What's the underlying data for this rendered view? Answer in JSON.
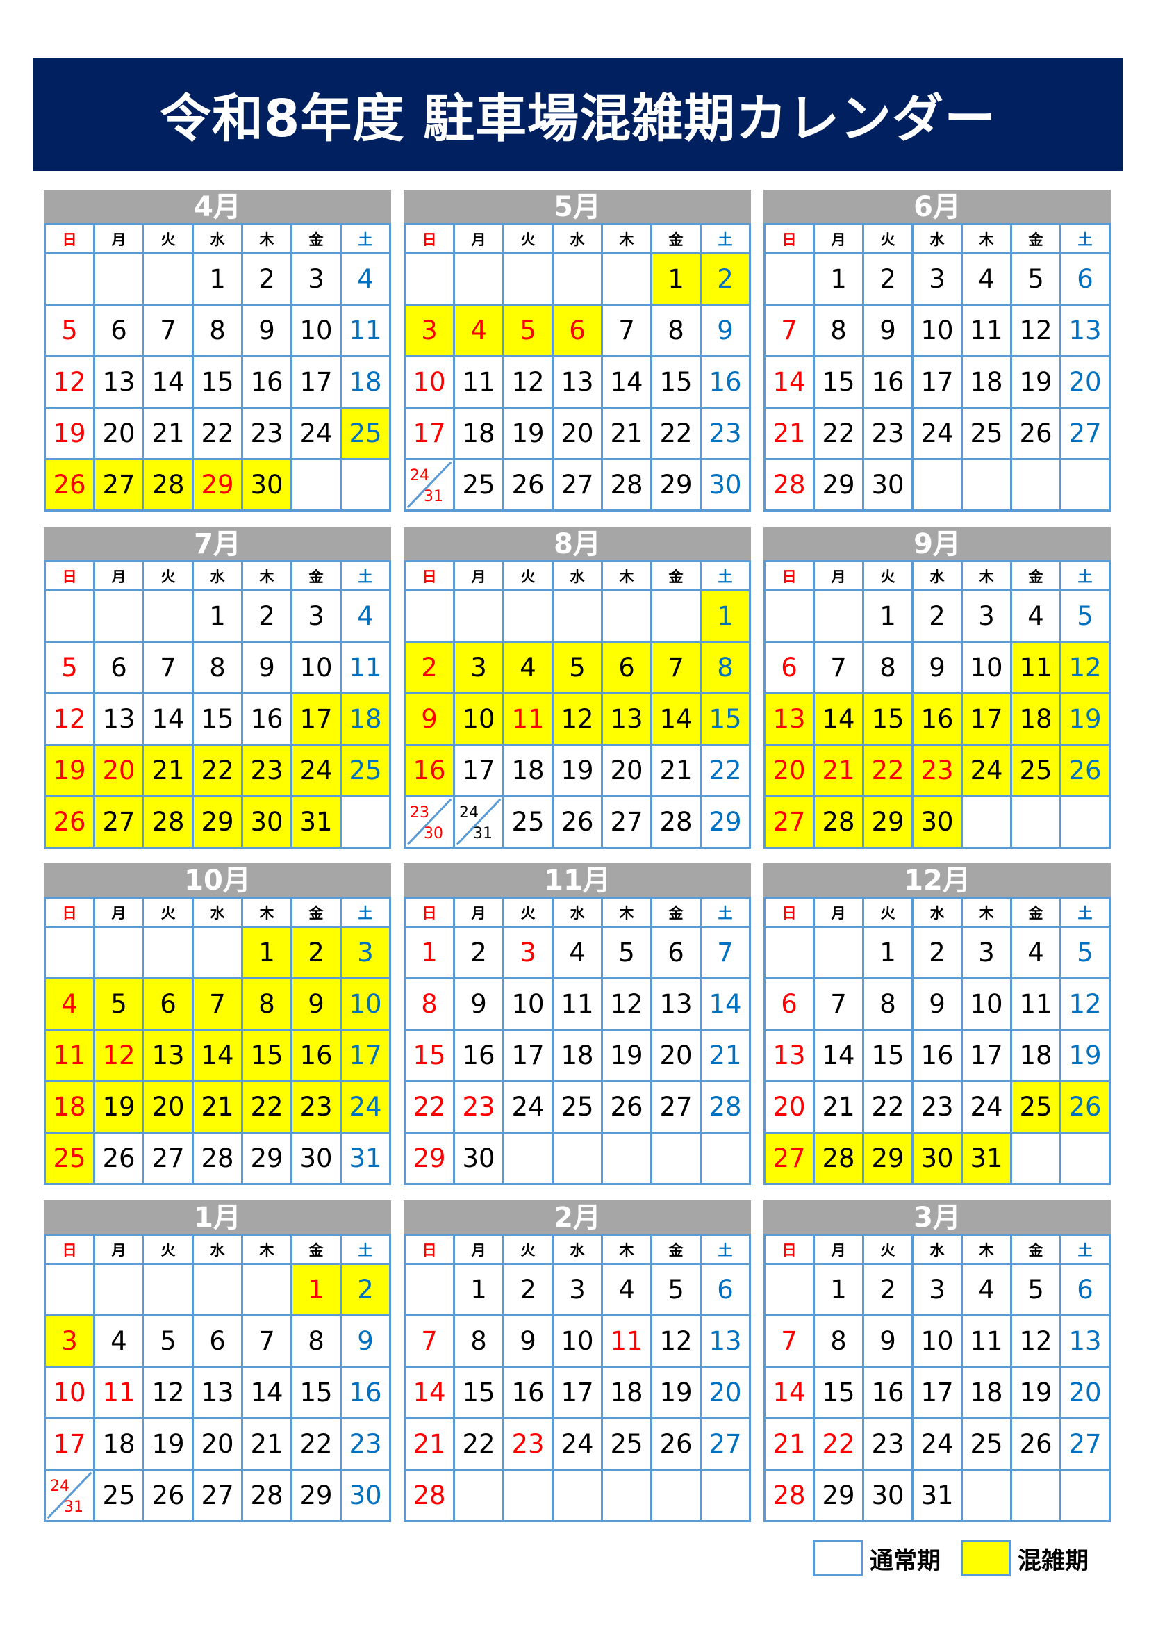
{
  "title": "令和8年度 駐車場混雑期カレンダー",
  "weekdays": [
    "日",
    "月",
    "火",
    "水",
    "木",
    "金",
    "土"
  ],
  "colors": {
    "title_bg": "#002060",
    "header_bg": "#a6a6a6",
    "grid": "#5b9bd5",
    "busy": "#ffff00",
    "sunday_holiday": "#ff0000",
    "saturday": "#0070c0"
  },
  "legend": {
    "normal": "通常期",
    "busy": "混雑期"
  },
  "months": [
    {
      "name": "4月",
      "weeks": [
        [
          "",
          "",
          "",
          "1",
          "2",
          "3",
          "4"
        ],
        [
          "5",
          "6",
          "7",
          "8",
          "9",
          "10",
          "11"
        ],
        [
          "12",
          "13",
          "14",
          "15",
          "16",
          "17",
          "18"
        ],
        [
          "19",
          "20",
          "21",
          "22",
          "23",
          "24",
          "25"
        ],
        [
          "26",
          "27",
          "28",
          "29",
          "30",
          "",
          ""
        ]
      ],
      "holidays": [
        "29"
      ],
      "busy": [
        "25",
        "26",
        "27",
        "28",
        "29",
        "30"
      ]
    },
    {
      "name": "5月",
      "weeks": [
        [
          "",
          "",
          "",
          "",
          "",
          "1",
          "2"
        ],
        [
          "3",
          "4",
          "5",
          "6",
          "7",
          "8",
          "9"
        ],
        [
          "10",
          "11",
          "12",
          "13",
          "14",
          "15",
          "16"
        ],
        [
          "17",
          "18",
          "19",
          "20",
          "21",
          "22",
          "23"
        ],
        [
          "24/31",
          "25",
          "26",
          "27",
          "28",
          "29",
          "30"
        ]
      ],
      "holidays": [
        "3",
        "4",
        "5",
        "6"
      ],
      "busy": [
        "1",
        "2",
        "3",
        "4",
        "5",
        "6"
      ]
    },
    {
      "name": "6月",
      "weeks": [
        [
          "",
          "1",
          "2",
          "3",
          "4",
          "5",
          "6"
        ],
        [
          "7",
          "8",
          "9",
          "10",
          "11",
          "12",
          "13"
        ],
        [
          "14",
          "15",
          "16",
          "17",
          "18",
          "19",
          "20"
        ],
        [
          "21",
          "22",
          "23",
          "24",
          "25",
          "26",
          "27"
        ],
        [
          "28",
          "29",
          "30",
          "",
          "",
          "",
          ""
        ]
      ],
      "holidays": [],
      "busy": []
    },
    {
      "name": "7月",
      "weeks": [
        [
          "",
          "",
          "",
          "1",
          "2",
          "3",
          "4"
        ],
        [
          "5",
          "6",
          "7",
          "8",
          "9",
          "10",
          "11"
        ],
        [
          "12",
          "13",
          "14",
          "15",
          "16",
          "17",
          "18"
        ],
        [
          "19",
          "20",
          "21",
          "22",
          "23",
          "24",
          "25"
        ],
        [
          "26",
          "27",
          "28",
          "29",
          "30",
          "31",
          ""
        ]
      ],
      "holidays": [
        "20"
      ],
      "busy": [
        "17",
        "18",
        "19",
        "20",
        "21",
        "22",
        "23",
        "24",
        "25",
        "26",
        "27",
        "28",
        "29",
        "30",
        "31"
      ]
    },
    {
      "name": "8月",
      "weeks": [
        [
          "",
          "",
          "",
          "",
          "",
          "",
          "1"
        ],
        [
          "2",
          "3",
          "4",
          "5",
          "6",
          "7",
          "8"
        ],
        [
          "9",
          "10",
          "11",
          "12",
          "13",
          "14",
          "15"
        ],
        [
          "16",
          "17",
          "18",
          "19",
          "20",
          "21",
          "22"
        ],
        [
          "23/30",
          "24/31",
          "25",
          "26",
          "27",
          "28",
          "29"
        ]
      ],
      "holidays": [
        "11"
      ],
      "busy": [
        "1",
        "2",
        "3",
        "4",
        "5",
        "6",
        "7",
        "8",
        "9",
        "10",
        "11",
        "12",
        "13",
        "14",
        "15",
        "16"
      ]
    },
    {
      "name": "9月",
      "weeks": [
        [
          "",
          "",
          "1",
          "2",
          "3",
          "4",
          "5"
        ],
        [
          "6",
          "7",
          "8",
          "9",
          "10",
          "11",
          "12"
        ],
        [
          "13",
          "14",
          "15",
          "16",
          "17",
          "18",
          "19"
        ],
        [
          "20",
          "21",
          "22",
          "23",
          "24",
          "25",
          "26"
        ],
        [
          "27",
          "28",
          "29",
          "30",
          "",
          "",
          ""
        ]
      ],
      "holidays": [
        "21",
        "22",
        "23"
      ],
      "busy": [
        "11",
        "12",
        "13",
        "14",
        "15",
        "16",
        "17",
        "18",
        "19",
        "20",
        "21",
        "22",
        "23",
        "24",
        "25",
        "26",
        "27",
        "28",
        "29",
        "30"
      ]
    },
    {
      "name": "10月",
      "weeks": [
        [
          "",
          "",
          "",
          "",
          "1",
          "2",
          "3"
        ],
        [
          "4",
          "5",
          "6",
          "7",
          "8",
          "9",
          "10"
        ],
        [
          "11",
          "12",
          "13",
          "14",
          "15",
          "16",
          "17"
        ],
        [
          "18",
          "19",
          "20",
          "21",
          "22",
          "23",
          "24"
        ],
        [
          "25",
          "26",
          "27",
          "28",
          "29",
          "30",
          "31"
        ]
      ],
      "holidays": [
        "12"
      ],
      "busy": [
        "1",
        "2",
        "3",
        "4",
        "5",
        "6",
        "7",
        "8",
        "9",
        "10",
        "11",
        "12",
        "13",
        "14",
        "15",
        "16",
        "17",
        "18",
        "19",
        "20",
        "21",
        "22",
        "23",
        "24",
        "25"
      ]
    },
    {
      "name": "11月",
      "weeks": [
        [
          "1",
          "2",
          "3",
          "4",
          "5",
          "6",
          "7"
        ],
        [
          "8",
          "9",
          "10",
          "11",
          "12",
          "13",
          "14"
        ],
        [
          "15",
          "16",
          "17",
          "18",
          "19",
          "20",
          "21"
        ],
        [
          "22",
          "23",
          "24",
          "25",
          "26",
          "27",
          "28"
        ],
        [
          "29",
          "30",
          "",
          "",
          "",
          "",
          ""
        ]
      ],
      "holidays": [
        "3",
        "23"
      ],
      "busy": []
    },
    {
      "name": "12月",
      "weeks": [
        [
          "",
          "",
          "1",
          "2",
          "3",
          "4",
          "5"
        ],
        [
          "6",
          "7",
          "8",
          "9",
          "10",
          "11",
          "12"
        ],
        [
          "13",
          "14",
          "15",
          "16",
          "17",
          "18",
          "19"
        ],
        [
          "20",
          "21",
          "22",
          "23",
          "24",
          "25",
          "26"
        ],
        [
          "27",
          "28",
          "29",
          "30",
          "31",
          "",
          ""
        ]
      ],
      "holidays": [],
      "busy": [
        "25",
        "26",
        "27",
        "28",
        "29",
        "30",
        "31"
      ]
    },
    {
      "name": "1月",
      "weeks": [
        [
          "",
          "",
          "",
          "",
          "",
          "1",
          "2"
        ],
        [
          "3",
          "4",
          "5",
          "6",
          "7",
          "8",
          "9"
        ],
        [
          "10",
          "11",
          "12",
          "13",
          "14",
          "15",
          "16"
        ],
        [
          "17",
          "18",
          "19",
          "20",
          "21",
          "22",
          "23"
        ],
        [
          "24/31",
          "25",
          "26",
          "27",
          "28",
          "29",
          "30"
        ]
      ],
      "holidays": [
        "1",
        "11"
      ],
      "busy": [
        "1",
        "2",
        "3"
      ]
    },
    {
      "name": "2月",
      "weeks": [
        [
          "",
          "1",
          "2",
          "3",
          "4",
          "5",
          "6"
        ],
        [
          "7",
          "8",
          "9",
          "10",
          "11",
          "12",
          "13"
        ],
        [
          "14",
          "15",
          "16",
          "17",
          "18",
          "19",
          "20"
        ],
        [
          "21",
          "22",
          "23",
          "24",
          "25",
          "26",
          "27"
        ],
        [
          "28",
          "",
          "",
          "",
          "",
          "",
          ""
        ]
      ],
      "holidays": [
        "11",
        "23"
      ],
      "busy": []
    },
    {
      "name": "3月",
      "weeks": [
        [
          "",
          "1",
          "2",
          "3",
          "4",
          "5",
          "6"
        ],
        [
          "7",
          "8",
          "9",
          "10",
          "11",
          "12",
          "13"
        ],
        [
          "14",
          "15",
          "16",
          "17",
          "18",
          "19",
          "20"
        ],
        [
          "21",
          "22",
          "23",
          "24",
          "25",
          "26",
          "27"
        ],
        [
          "28",
          "29",
          "30",
          "31",
          "",
          "",
          ""
        ]
      ],
      "holidays": [
        "22"
      ],
      "busy": []
    }
  ]
}
